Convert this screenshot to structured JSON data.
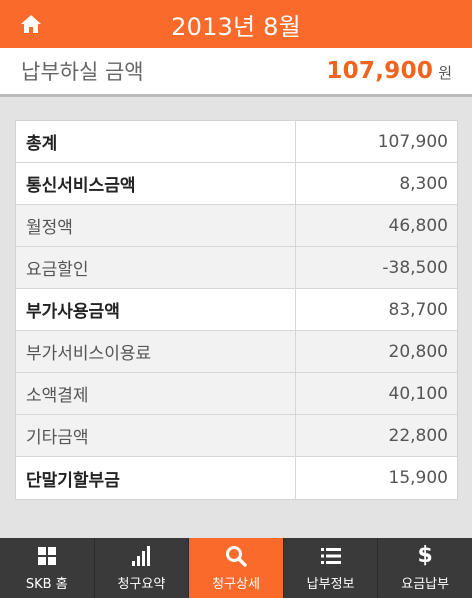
{
  "header": {
    "title": "2013년 8월",
    "home_icon": "home-icon"
  },
  "summary": {
    "label": "납부하실 금액",
    "amount": "107,900",
    "unit": "원",
    "accent_color": "#f0641f"
  },
  "rows": [
    {
      "label": "총계",
      "value": "107,900",
      "bold": true
    },
    {
      "label": "통신서비스금액",
      "value": "8,300",
      "bold": true
    },
    {
      "label": "월정액",
      "value": "46,800",
      "bold": false
    },
    {
      "label": "요금할인",
      "value": "-38,500",
      "bold": false
    },
    {
      "label": "부가사용금액",
      "value": "83,700",
      "bold": true
    },
    {
      "label": "부가서비스이용료",
      "value": "20,800",
      "bold": false
    },
    {
      "label": "소액결제",
      "value": "40,100",
      "bold": false
    },
    {
      "label": "기타금액",
      "value": "22,800",
      "bold": false
    },
    {
      "label": "단말기할부금",
      "value": "15,900",
      "bold": true
    }
  ],
  "nav": [
    {
      "label": "SKB 홈",
      "icon": "grid-icon",
      "active": false
    },
    {
      "label": "청구요약",
      "icon": "bar-chart-icon",
      "active": false
    },
    {
      "label": "청구상세",
      "icon": "search-icon",
      "active": true
    },
    {
      "label": "납부정보",
      "icon": "list-icon",
      "active": false
    },
    {
      "label": "요금납부",
      "icon": "dollar-icon",
      "active": false
    }
  ],
  "colors": {
    "brand_orange": "#fa6a2a",
    "nav_background": "#3a3a3a"
  }
}
